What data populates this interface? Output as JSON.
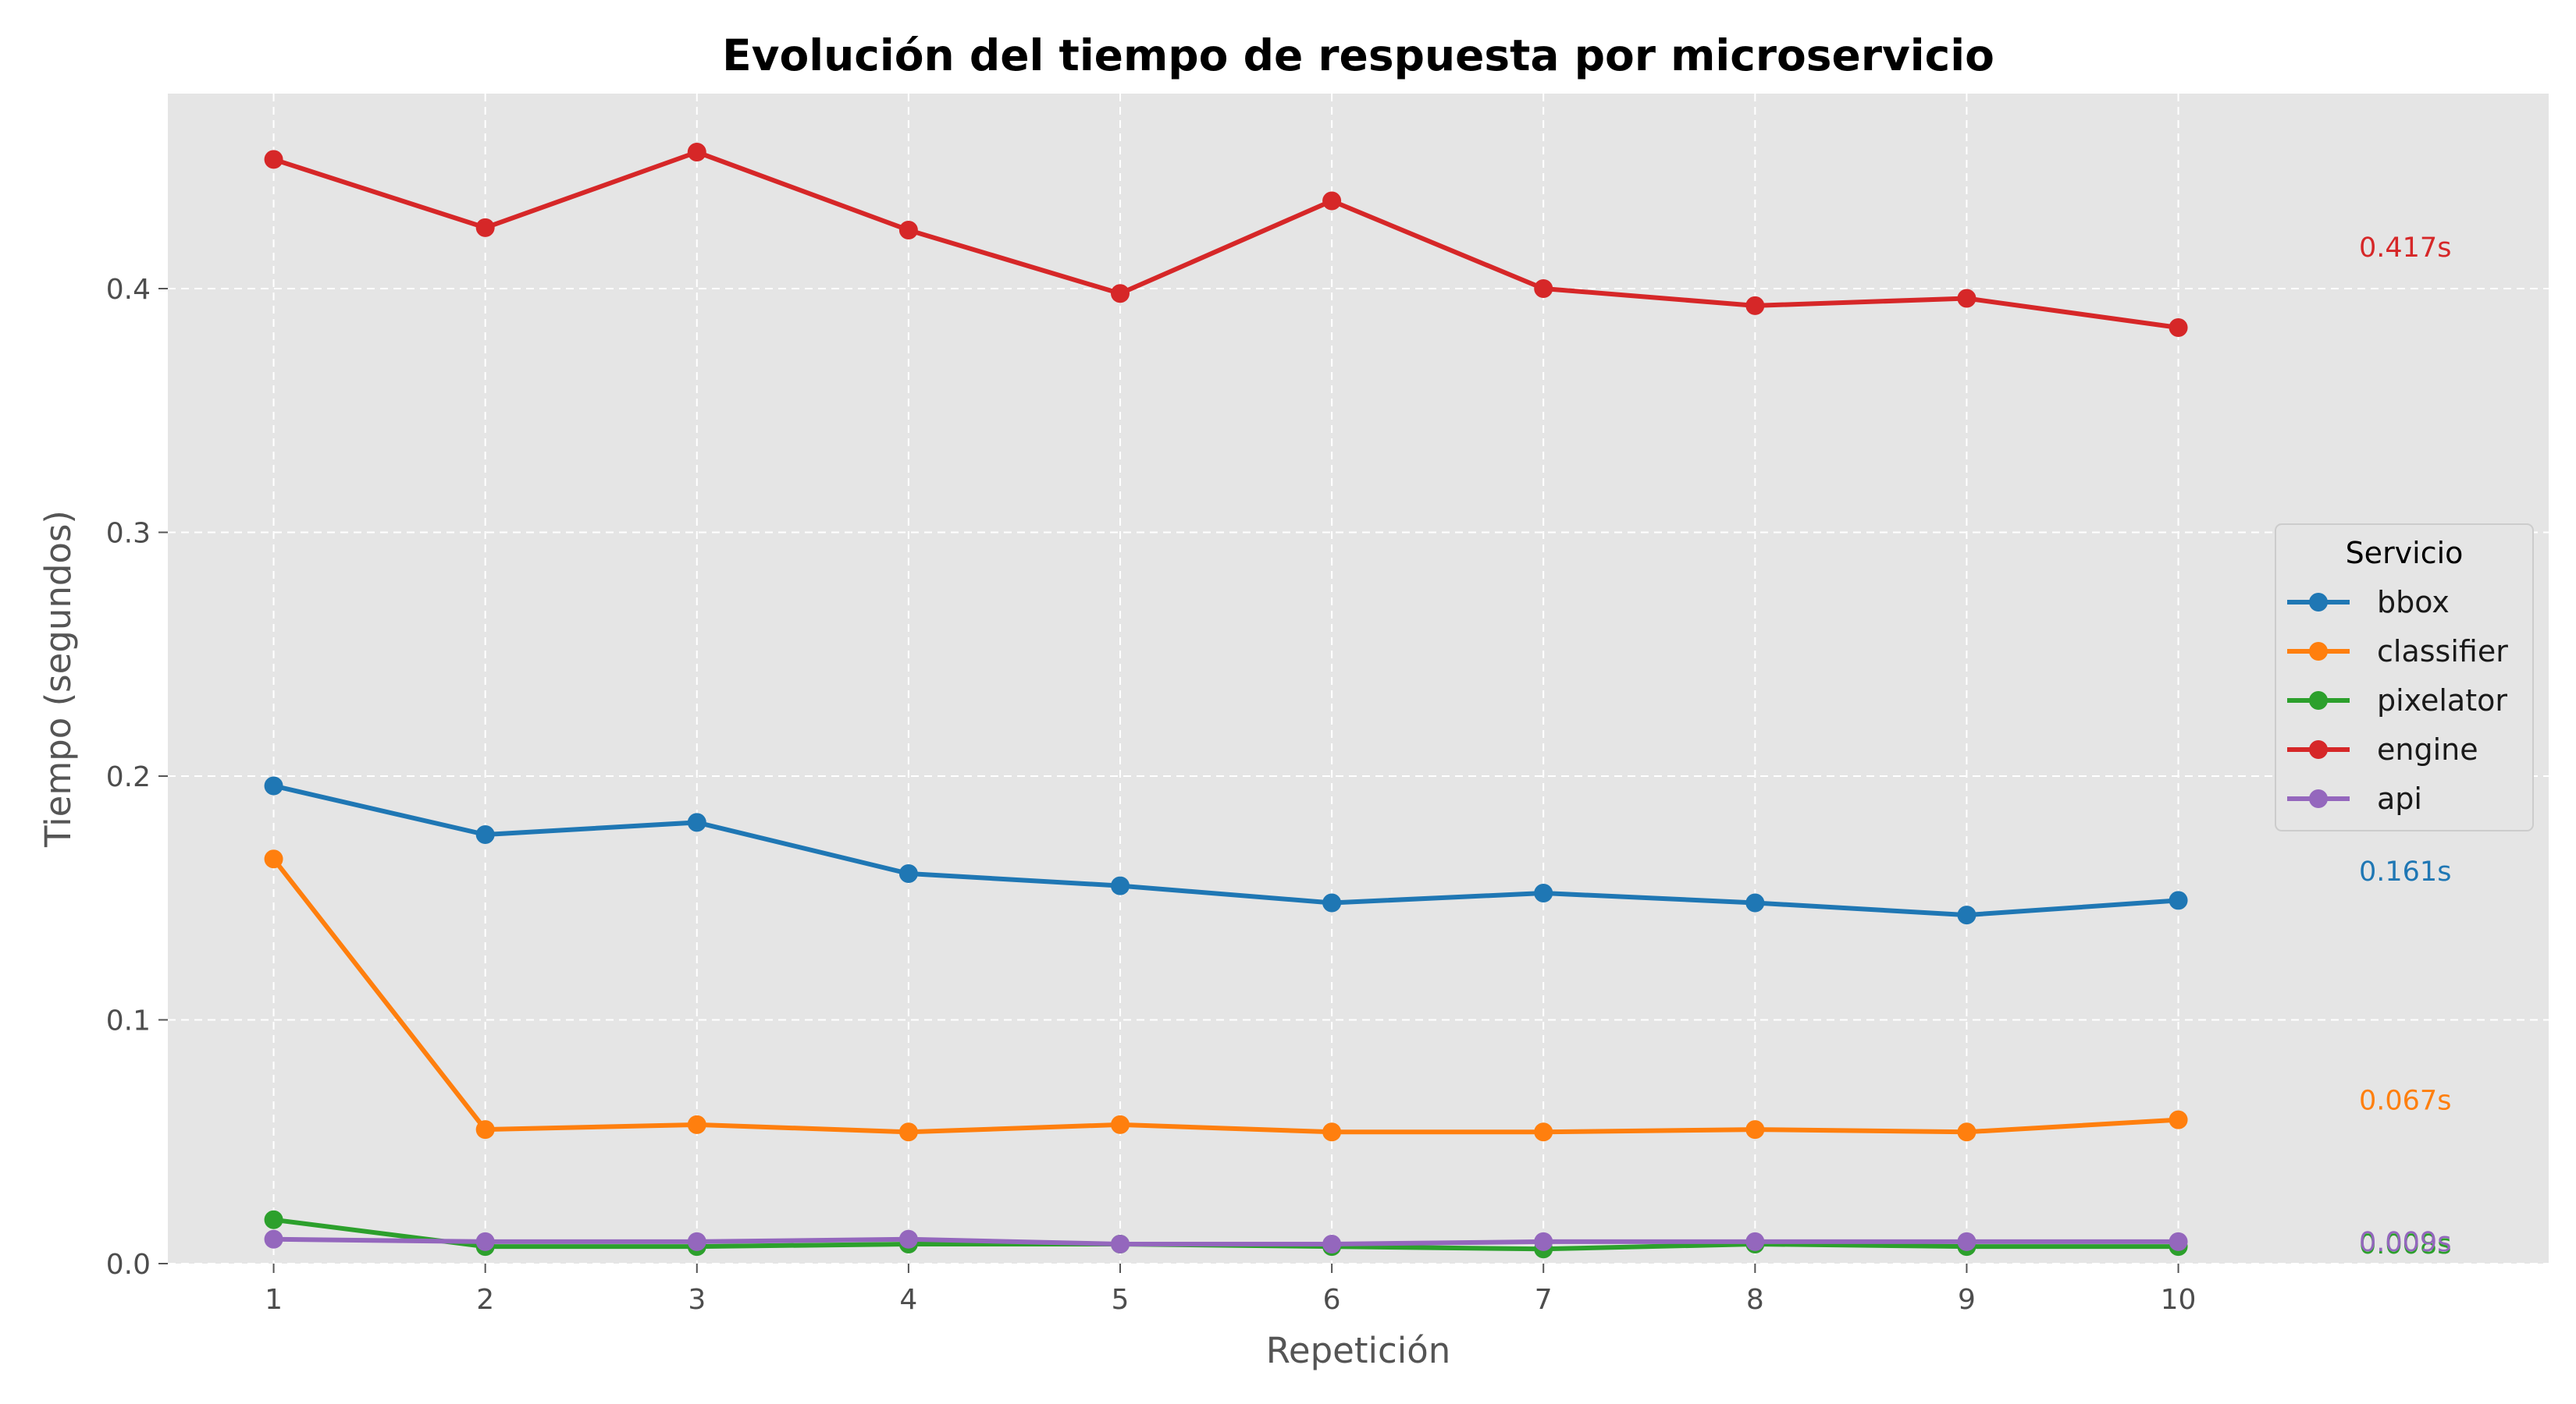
{
  "chart_data": {
    "type": "line",
    "title": "Evolución del tiempo de respuesta por microservicio",
    "xlabel": "Repetición",
    "ylabel": "Tiempo (segundos)",
    "x": [
      1,
      2,
      3,
      4,
      5,
      6,
      7,
      8,
      9,
      10
    ],
    "xlim": [
      0.5,
      11.75
    ],
    "ylim": [
      0.0,
      0.48
    ],
    "yticks": [
      0.0,
      0.1,
      0.2,
      0.3,
      0.4
    ],
    "ytick_labels": [
      "0.0",
      "0.1",
      "0.2",
      "0.3",
      "0.4"
    ],
    "grid": true,
    "legend": {
      "title": "Servicio",
      "position": "right"
    },
    "series": [
      {
        "name": "bbox",
        "color": "#1f77b4",
        "values": [
          0.196,
          0.176,
          0.181,
          0.16,
          0.155,
          0.148,
          0.152,
          0.148,
          0.143,
          0.149
        ],
        "end_label": "0.161s"
      },
      {
        "name": "classifier",
        "color": "#ff7f0e",
        "values": [
          0.166,
          0.055,
          0.057,
          0.054,
          0.057,
          0.054,
          0.054,
          0.055,
          0.054,
          0.059
        ],
        "end_label": "0.067s"
      },
      {
        "name": "pixelator",
        "color": "#2ca02c",
        "values": [
          0.018,
          0.007,
          0.007,
          0.008,
          0.008,
          0.007,
          0.006,
          0.008,
          0.007,
          0.007
        ],
        "end_label": "0.008s"
      },
      {
        "name": "engine",
        "color": "#d62728",
        "values": [
          0.453,
          0.425,
          0.456,
          0.424,
          0.398,
          0.436,
          0.4,
          0.393,
          0.396,
          0.384
        ],
        "end_label": "0.417s"
      },
      {
        "name": "api",
        "color": "#9467bd",
        "values": [
          0.01,
          0.009,
          0.009,
          0.01,
          0.008,
          0.008,
          0.009,
          0.009,
          0.009,
          0.009
        ],
        "end_label": "0.009s"
      }
    ],
    "end_label_values": [
      0.161,
      0.067,
      0.008,
      0.417,
      0.009
    ]
  }
}
